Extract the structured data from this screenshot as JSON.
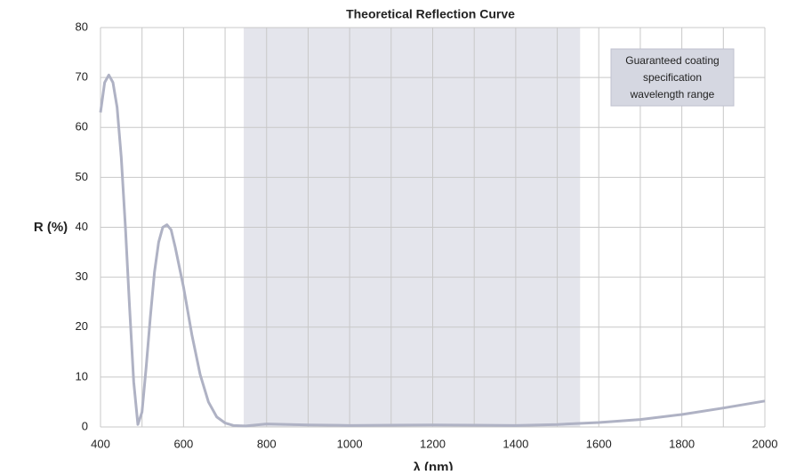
{
  "chart_data": {
    "type": "line",
    "title": "Theoretical Reflection Curve",
    "x_label": "λ (nm)",
    "y_label": "R (%)",
    "xlim": [
      400,
      2000
    ],
    "ylim": [
      0,
      80
    ],
    "xticks": [
      400,
      600,
      800,
      1000,
      1200,
      1400,
      1600,
      1800,
      2000
    ],
    "xminor": [
      500,
      700,
      900,
      1100,
      1300,
      1500,
      1700,
      1900
    ],
    "yticks": [
      0,
      10,
      20,
      30,
      40,
      50,
      60,
      70,
      80
    ],
    "grid": true,
    "shaded_range": [
      745,
      1555
    ],
    "shaded_color": "#e4e5ec",
    "annotation": [
      "Guaranteed coating",
      "specification",
      "wavelength range"
    ],
    "x": [
      400,
      410,
      420,
      430,
      440,
      450,
      460,
      470,
      480,
      490,
      500,
      510,
      520,
      530,
      540,
      550,
      560,
      570,
      580,
      590,
      600,
      620,
      640,
      660,
      680,
      700,
      720,
      750,
      800,
      900,
      1000,
      1100,
      1200,
      1300,
      1400,
      1500,
      1600,
      1700,
      1800,
      1900,
      2000
    ],
    "series": [
      {
        "name": "R",
        "color": "#afb2c4",
        "values": [
          63,
          69,
          70.5,
          69,
          64,
          54,
          40,
          24,
          9,
          0.5,
          3,
          12,
          22,
          31,
          37,
          40,
          40.5,
          39.5,
          36,
          32,
          28,
          18.5,
          10.5,
          5,
          2,
          0.8,
          0.3,
          0.2,
          0.6,
          0.4,
          0.3,
          0.35,
          0.4,
          0.35,
          0.3,
          0.5,
          0.9,
          1.5,
          2.5,
          3.8,
          5.2
        ]
      }
    ]
  }
}
